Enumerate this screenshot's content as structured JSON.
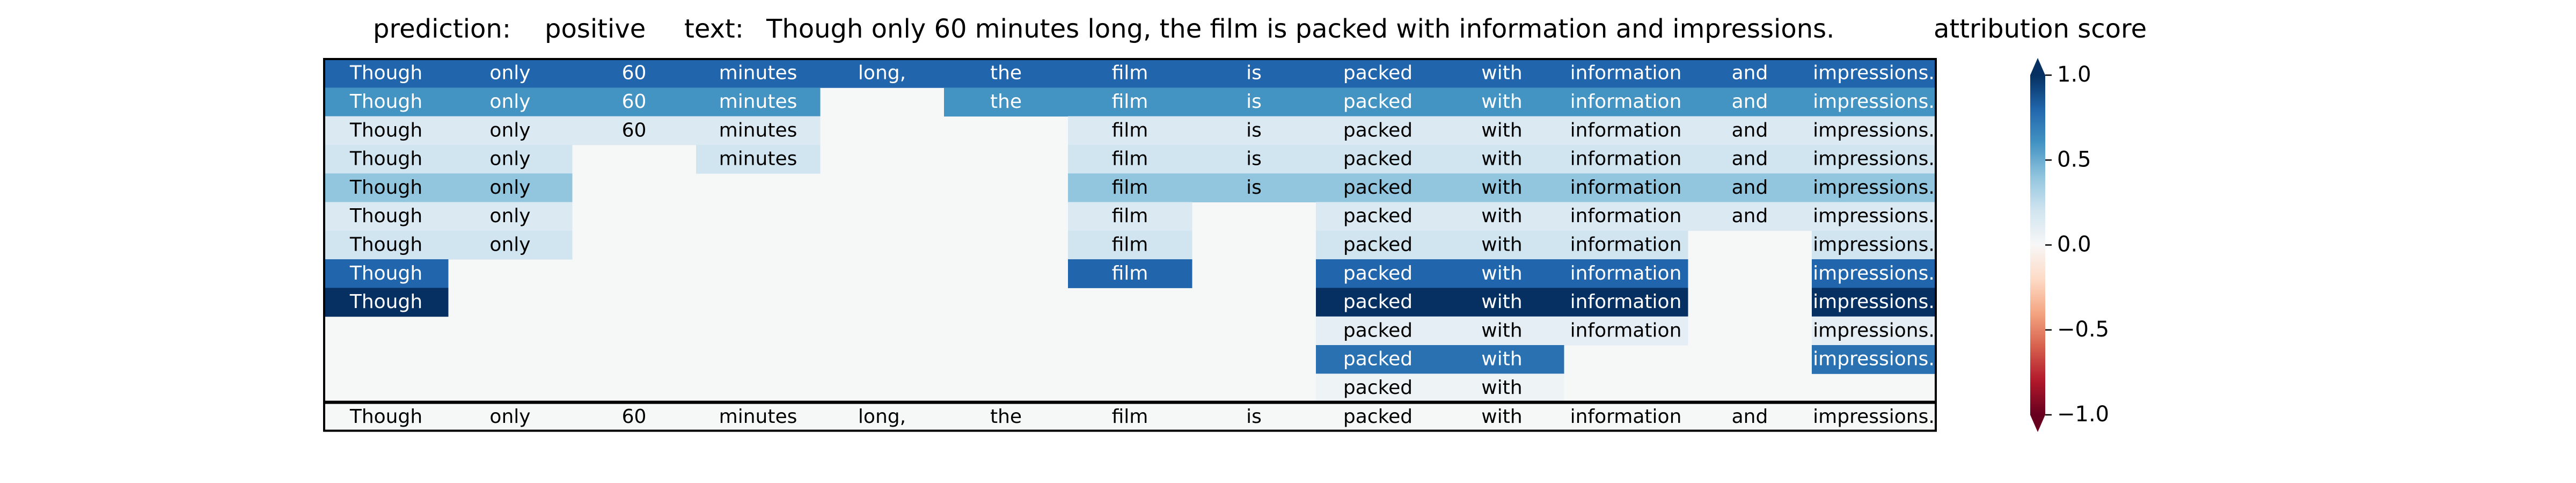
{
  "header": {
    "prediction_label": "prediction:",
    "prediction_value": "positive",
    "text_label": "text:",
    "text_value": "Though only 60 minutes long, the film is packed with information and impressions.",
    "colorbar_title": "attribution score"
  },
  "colors": {
    "neutral": "#f6f7f7",
    "frame": "#000000"
  },
  "chart_data": {
    "type": "heatmap",
    "title": "",
    "columns": [
      "Though",
      "only",
      "60",
      "minutes",
      "long,",
      "the",
      "film",
      "is",
      "packed",
      "with",
      "information",
      "and",
      "impressions."
    ],
    "rows": [
      [
        0.8,
        0.8,
        0.8,
        0.8,
        0.8,
        0.8,
        0.8,
        0.8,
        0.8,
        0.8,
        0.8,
        0.8,
        0.8
      ],
      [
        0.6,
        0.6,
        0.6,
        0.6,
        null,
        0.6,
        0.6,
        0.6,
        0.6,
        0.6,
        0.6,
        0.6,
        0.6
      ],
      [
        0.15,
        0.15,
        0.15,
        0.15,
        null,
        null,
        0.15,
        0.15,
        0.15,
        0.15,
        0.15,
        0.15,
        0.15
      ],
      [
        0.2,
        0.2,
        null,
        0.2,
        null,
        null,
        0.2,
        0.2,
        0.2,
        0.2,
        0.2,
        0.2,
        0.2
      ],
      [
        0.4,
        0.4,
        null,
        null,
        null,
        null,
        0.4,
        0.4,
        0.4,
        0.4,
        0.4,
        0.4,
        0.4
      ],
      [
        0.15,
        0.15,
        null,
        null,
        null,
        null,
        0.15,
        null,
        0.15,
        0.15,
        0.15,
        0.15,
        0.15
      ],
      [
        0.2,
        0.2,
        null,
        null,
        null,
        null,
        0.2,
        null,
        0.2,
        0.2,
        0.2,
        null,
        0.2
      ],
      [
        0.8,
        null,
        null,
        null,
        null,
        null,
        0.8,
        null,
        0.8,
        0.8,
        0.8,
        null,
        0.8
      ],
      [
        1.0,
        null,
        null,
        null,
        null,
        null,
        null,
        null,
        1.0,
        1.0,
        1.0,
        null,
        1.0
      ],
      [
        null,
        null,
        null,
        null,
        null,
        null,
        null,
        null,
        0.1,
        0.1,
        0.1,
        null,
        0.1
      ],
      [
        null,
        null,
        null,
        null,
        null,
        null,
        null,
        null,
        0.75,
        0.75,
        null,
        null,
        0.75
      ],
      [
        null,
        null,
        null,
        null,
        null,
        null,
        null,
        null,
        0.05,
        0.05,
        null,
        null,
        null
      ]
    ],
    "bottom_row": [
      "Though",
      "only",
      "60",
      "minutes",
      "long,",
      "the",
      "film",
      "is",
      "packed",
      "with",
      "information",
      "and",
      "impressions."
    ],
    "colorbar": {
      "min": -1.0,
      "max": 1.0,
      "ticks": [
        1.0,
        0.5,
        0.0,
        -0.5,
        -1.0
      ],
      "tick_labels": [
        "1.0",
        "0.5",
        "0.0",
        "−0.5",
        "−1.0"
      ],
      "colormap": "RdBu",
      "extend": "both"
    }
  }
}
